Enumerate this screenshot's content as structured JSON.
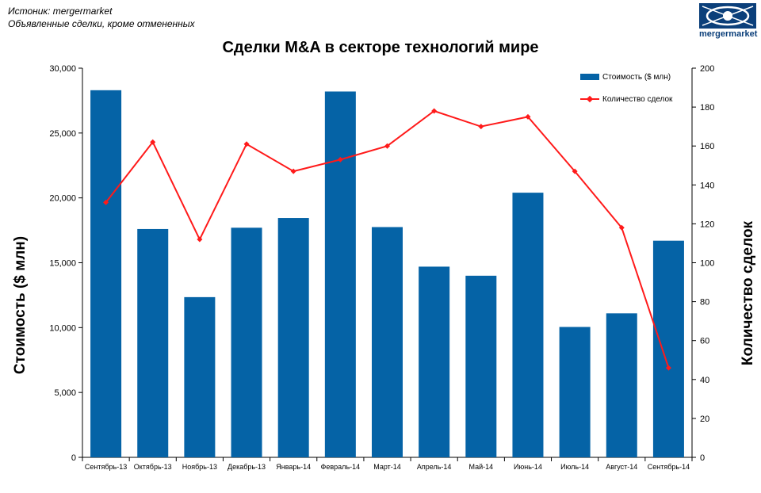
{
  "source": {
    "line1": "Истоник: mergermarket",
    "line2": "Объявленные сделки, кроме отмененных"
  },
  "logo": {
    "text": "mergermarket"
  },
  "colors": {
    "bar": "#0563a6",
    "line": "#ff1a1a"
  },
  "chart_data": {
    "type": "bar+line",
    "title": "Сделки M&A в секторе технологий  мире",
    "categories": [
      "Сентябрь-13",
      "Октябрь-13",
      "Ноябрь-13",
      "Декабрь-13",
      "Январь-14",
      "Февраль-14",
      "Март-14",
      "Апрель-14",
      "Май-14",
      "Июнь-14",
      "Июль-14",
      "Август-14",
      "Сентябрь-14"
    ],
    "series": [
      {
        "name": "Стоимость ($ млн)",
        "type": "bar",
        "axis": "left",
        "values": [
          28300,
          17600,
          12350,
          17700,
          18450,
          28200,
          17750,
          14700,
          14000,
          20400,
          10050,
          11100,
          16700
        ]
      },
      {
        "name": "Количество сделок",
        "type": "line",
        "axis": "right",
        "values": [
          131,
          162,
          112,
          161,
          147,
          153,
          160,
          178,
          170,
          175,
          147,
          118,
          46
        ]
      }
    ],
    "ylabel_left": "Стоимость  ($ млн)",
    "ylabel_right": "Количество сделок",
    "ylim_left": [
      0,
      30000
    ],
    "ylim_right": [
      0,
      200
    ],
    "yticks_left": [
      "0",
      "5,000",
      "10,000",
      "15,000",
      "20,000",
      "25,000",
      "30,000"
    ],
    "yticks_right": [
      "0",
      "20",
      "40",
      "60",
      "80",
      "100",
      "120",
      "140",
      "160",
      "180",
      "200"
    ],
    "grid": false,
    "legend_position": "top-right"
  }
}
